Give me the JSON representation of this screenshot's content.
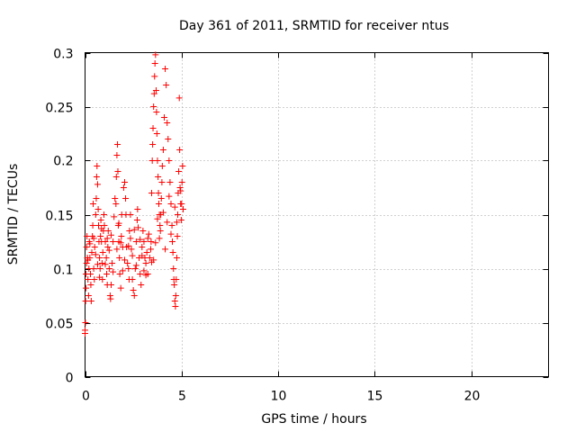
{
  "chart_data": {
    "type": "scatter",
    "title": "Day 361 of 2011, SRMTID for receiver ntus",
    "xlabel": "GPS time / hours",
    "ylabel": "SRMTID / TECUs",
    "xlim": [
      0,
      24
    ],
    "ylim": [
      0,
      0.3
    ],
    "xticks": [
      0,
      5,
      10,
      15,
      20
    ],
    "xtick_labels": [
      "0",
      "5",
      "10",
      "15",
      "20"
    ],
    "yticks": [
      0,
      0.05,
      0.1,
      0.15,
      0.2,
      0.25,
      0.3
    ],
    "ytick_labels": [
      "0",
      "0.05",
      "0.1",
      "0.15",
      "0.2",
      "0.25",
      "0.3"
    ],
    "grid": true,
    "marker": "+",
    "series": [
      {
        "name": "ntus",
        "color": "#ff0000",
        "points": [
          [
            0.0,
            0.04
          ],
          [
            0.0,
            0.043
          ],
          [
            0.02,
            0.05
          ],
          [
            0.03,
            0.07
          ],
          [
            0.05,
            0.082
          ],
          [
            0.05,
            0.095
          ],
          [
            0.08,
            0.105
          ],
          [
            0.08,
            0.12
          ],
          [
            0.1,
            0.13
          ],
          [
            0.12,
            0.11
          ],
          [
            0.15,
            0.09
          ],
          [
            0.18,
            0.075
          ],
          [
            0.2,
            0.1
          ],
          [
            0.22,
            0.125
          ],
          [
            0.25,
            0.11
          ],
          [
            0.28,
            0.095
          ],
          [
            0.3,
            0.085
          ],
          [
            0.32,
            0.07
          ],
          [
            0.35,
            0.115
          ],
          [
            0.38,
            0.13
          ],
          [
            0.4,
            0.14
          ],
          [
            0.42,
            0.16
          ],
          [
            0.45,
            0.1
          ],
          [
            0.48,
            0.09
          ],
          [
            0.5,
            0.12
          ],
          [
            0.55,
            0.15
          ],
          [
            0.58,
            0.165
          ],
          [
            0.6,
            0.185
          ],
          [
            0.62,
            0.195
          ],
          [
            0.65,
            0.178
          ],
          [
            0.68,
            0.155
          ],
          [
            0.7,
            0.14
          ],
          [
            0.72,
            0.125
          ],
          [
            0.75,
            0.11
          ],
          [
            0.78,
            0.1
          ],
          [
            0.8,
            0.13
          ],
          [
            0.82,
            0.145
          ],
          [
            0.85,
            0.125
          ],
          [
            0.88,
            0.105
          ],
          [
            0.9,
            0.09
          ],
          [
            0.92,
            0.115
          ],
          [
            0.95,
            0.135
          ],
          [
            0.98,
            0.15
          ],
          [
            1.0,
            0.14
          ],
          [
            1.05,
            0.125
          ],
          [
            1.1,
            0.11
          ],
          [
            1.12,
            0.095
          ],
          [
            1.15,
            0.085
          ],
          [
            1.18,
            0.12
          ],
          [
            1.2,
            0.135
          ],
          [
            1.25,
            0.1
          ],
          [
            1.3,
            0.075
          ],
          [
            1.32,
            0.072
          ],
          [
            1.35,
            0.085
          ],
          [
            1.4,
            0.105
          ],
          [
            1.45,
            0.125
          ],
          [
            1.5,
            0.148
          ],
          [
            1.55,
            0.165
          ],
          [
            1.6,
            0.16
          ],
          [
            1.62,
            0.185
          ],
          [
            1.65,
            0.205
          ],
          [
            1.68,
            0.215
          ],
          [
            1.7,
            0.19
          ],
          [
            1.72,
            0.14
          ],
          [
            1.75,
            0.125
          ],
          [
            1.78,
            0.11
          ],
          [
            1.8,
            0.095
          ],
          [
            1.85,
            0.082
          ],
          [
            1.88,
            0.13
          ],
          [
            1.9,
            0.15
          ],
          [
            1.95,
            0.12
          ],
          [
            2.0,
            0.175
          ],
          [
            2.05,
            0.18
          ],
          [
            2.1,
            0.165
          ],
          [
            2.12,
            0.15
          ],
          [
            2.15,
            0.12
          ],
          [
            2.2,
            0.105
          ],
          [
            2.25,
            0.1
          ],
          [
            2.28,
            0.09
          ],
          [
            2.3,
            0.135
          ],
          [
            2.35,
            0.15
          ],
          [
            2.4,
            0.118
          ],
          [
            2.45,
            0.09
          ],
          [
            2.5,
            0.08
          ],
          [
            2.55,
            0.075
          ],
          [
            2.6,
            0.1
          ],
          [
            2.65,
            0.125
          ],
          [
            2.7,
            0.145
          ],
          [
            2.72,
            0.155
          ],
          [
            2.75,
            0.138
          ],
          [
            2.8,
            0.11
          ],
          [
            2.85,
            0.095
          ],
          [
            2.9,
            0.085
          ],
          [
            2.95,
            0.12
          ],
          [
            3.0,
            0.135
          ],
          [
            3.05,
            0.125
          ],
          [
            3.1,
            0.11
          ],
          [
            3.15,
            0.105
          ],
          [
            3.2,
            0.115
          ],
          [
            3.25,
            0.128
          ],
          [
            3.3,
            0.132
          ],
          [
            3.35,
            0.11
          ],
          [
            3.4,
            0.118
          ],
          [
            3.42,
            0.125
          ],
          [
            3.45,
            0.17
          ],
          [
            3.48,
            0.2
          ],
          [
            3.5,
            0.215
          ],
          [
            3.52,
            0.23
          ],
          [
            3.55,
            0.25
          ],
          [
            3.58,
            0.262
          ],
          [
            3.6,
            0.278
          ],
          [
            3.62,
            0.29
          ],
          [
            3.65,
            0.298
          ],
          [
            3.68,
            0.265
          ],
          [
            3.7,
            0.245
          ],
          [
            3.72,
            0.225
          ],
          [
            3.75,
            0.2
          ],
          [
            3.78,
            0.185
          ],
          [
            3.8,
            0.17
          ],
          [
            3.82,
            0.16
          ],
          [
            3.85,
            0.15
          ],
          [
            3.88,
            0.14
          ],
          [
            3.9,
            0.135
          ],
          [
            3.92,
            0.15
          ],
          [
            3.95,
            0.165
          ],
          [
            3.98,
            0.18
          ],
          [
            4.0,
            0.195
          ],
          [
            4.05,
            0.21
          ],
          [
            4.1,
            0.24
          ],
          [
            4.15,
            0.285
          ],
          [
            4.2,
            0.27
          ],
          [
            4.25,
            0.235
          ],
          [
            4.3,
            0.22
          ],
          [
            4.35,
            0.2
          ],
          [
            4.4,
            0.18
          ],
          [
            4.45,
            0.16
          ],
          [
            4.5,
            0.14
          ],
          [
            4.52,
            0.125
          ],
          [
            4.55,
            0.115
          ],
          [
            4.58,
            0.1
          ],
          [
            4.6,
            0.09
          ],
          [
            4.62,
            0.085
          ],
          [
            4.65,
            0.07
          ],
          [
            4.68,
            0.065
          ],
          [
            4.7,
            0.075
          ],
          [
            4.72,
            0.09
          ],
          [
            4.75,
            0.11
          ],
          [
            4.78,
            0.13
          ],
          [
            4.8,
            0.15
          ],
          [
            4.82,
            0.17
          ],
          [
            4.85,
            0.19
          ],
          [
            4.88,
            0.258
          ],
          [
            4.9,
            0.21
          ],
          [
            4.92,
            0.175
          ],
          [
            4.95,
            0.16
          ],
          [
            4.98,
            0.145
          ],
          [
            5.0,
            0.16
          ],
          [
            5.02,
            0.18
          ],
          [
            5.05,
            0.195
          ],
          [
            5.08,
            0.155
          ],
          [
            0.25,
            0.123
          ],
          [
            0.55,
            0.113
          ],
          [
            0.85,
            0.137
          ],
          [
            1.15,
            0.128
          ],
          [
            1.45,
            0.097
          ],
          [
            1.75,
            0.142
          ],
          [
            2.05,
            0.108
          ],
          [
            2.35,
            0.128
          ],
          [
            2.65,
            0.103
          ],
          [
            2.95,
            0.112
          ],
          [
            3.25,
            0.095
          ],
          [
            3.55,
            0.108
          ],
          [
            3.85,
            0.128
          ],
          [
            4.15,
            0.118
          ],
          [
            4.45,
            0.132
          ],
          [
            4.75,
            0.143
          ],
          [
            0.15,
            0.108
          ],
          [
            0.45,
            0.128
          ],
          [
            0.75,
            0.092
          ],
          [
            1.05,
            0.104
          ],
          [
            1.35,
            0.131
          ],
          [
            1.65,
            0.118
          ],
          [
            1.95,
            0.098
          ],
          [
            2.25,
            0.121
          ],
          [
            2.55,
            0.136
          ],
          [
            2.85,
            0.127
          ],
          [
            3.15,
            0.094
          ],
          [
            3.45,
            0.106
          ],
          [
            3.75,
            0.146
          ],
          [
            4.05,
            0.152
          ],
          [
            4.35,
            0.167
          ],
          [
            4.65,
            0.157
          ],
          [
            4.95,
            0.172
          ],
          [
            0.65,
            0.104
          ],
          [
            1.25,
            0.117
          ],
          [
            1.85,
            0.124
          ],
          [
            2.45,
            0.112
          ],
          [
            3.05,
            0.098
          ],
          [
            3.65,
            0.124
          ],
          [
            4.25,
            0.143
          ]
        ]
      }
    ]
  }
}
